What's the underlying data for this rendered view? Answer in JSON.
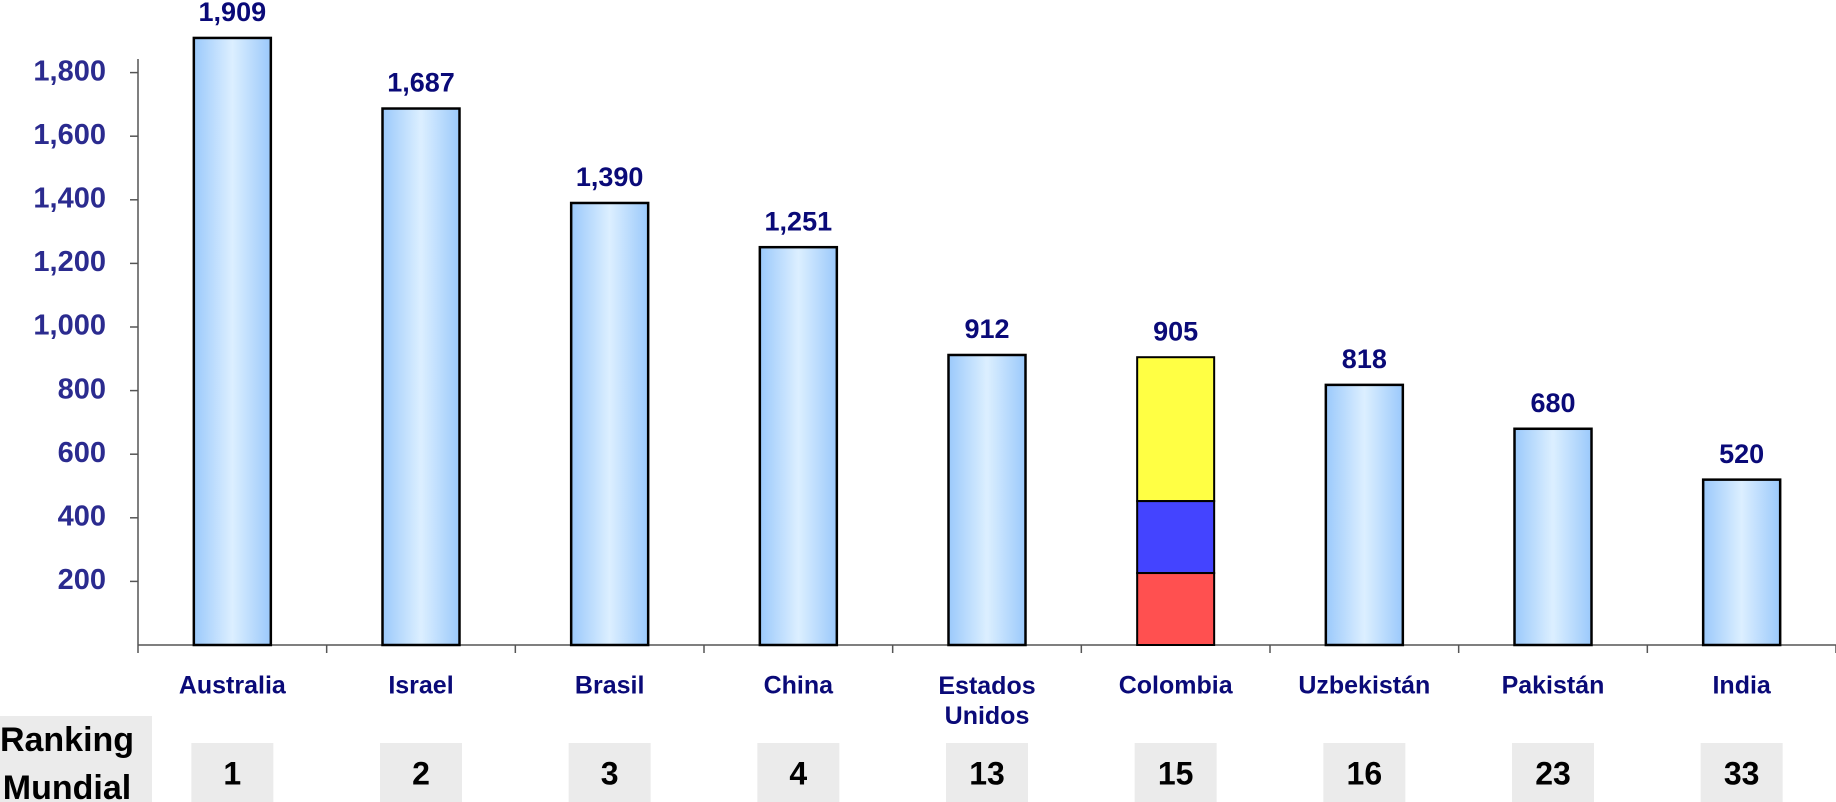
{
  "chart_data": {
    "type": "bar",
    "categories": [
      "Australia",
      "Israel",
      "Brasil",
      "China",
      "Estados Unidos",
      "Colombia",
      "Uzbekistán",
      "Pakistán",
      "India"
    ],
    "values": [
      1909,
      1687,
      1390,
      1251,
      912,
      905,
      818,
      680,
      520
    ],
    "value_labels": [
      "1,909",
      "1,687",
      "1,390",
      "1,251",
      "912",
      "905",
      "818",
      "680",
      "520"
    ],
    "color": "#a9d3ff",
    "highlight_category": "Colombia",
    "highlight_colors": [
      "#ffff44",
      "#4444ff",
      "#ff5050"
    ],
    "ylim": [
      0,
      2000
    ],
    "yticks": [
      {
        "value": 200,
        "label": "200"
      },
      {
        "value": 400,
        "label": "400"
      },
      {
        "value": 600,
        "label": "600"
      },
      {
        "value": 800,
        "label": "800"
      },
      {
        "value": 1000,
        "label": "1,000"
      },
      {
        "value": 1200,
        "label": "1,200"
      },
      {
        "value": 1400,
        "label": "1,400"
      },
      {
        "value": 1600,
        "label": "1,600"
      },
      {
        "value": 1800,
        "label": "1,800"
      }
    ],
    "ranking": {
      "label": "Ranking Mundial",
      "values": [
        1,
        2,
        3,
        4,
        13,
        15,
        16,
        23,
        33
      ]
    }
  }
}
